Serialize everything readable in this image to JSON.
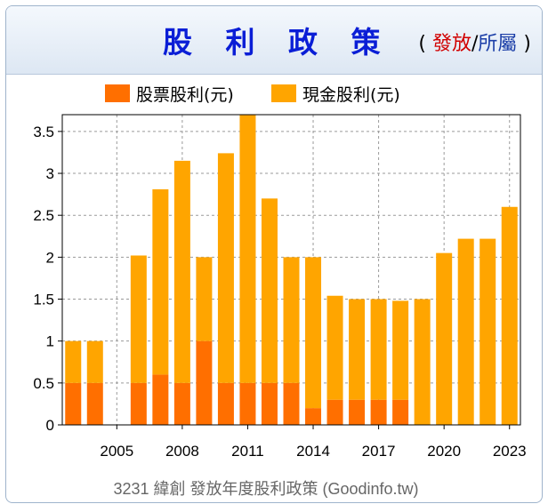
{
  "header": {
    "title": "股 利 政 策",
    "paren_open": "(",
    "option_active": "發放",
    "separator": "/",
    "option_other": "所屬",
    "paren_close": ")"
  },
  "colors": {
    "stock_dividend": "#ff6f00",
    "cash_dividend": "#ffa500",
    "header_title": "#0a1ed6",
    "active_option": "#d10000",
    "other_option": "#1c3fa8"
  },
  "chart_data": {
    "type": "bar",
    "stacked": true,
    "categories": [
      "2003",
      "2004",
      "2005",
      "2006",
      "2007",
      "2008",
      "2009",
      "2010",
      "2011",
      "2012",
      "2013",
      "2014",
      "2015",
      "2016",
      "2017",
      "2018",
      "2019",
      "2020",
      "2021",
      "2022",
      "2023"
    ],
    "series": [
      {
        "name": "股票股利(元)",
        "color": "#ff6f00",
        "values": [
          0.5,
          0.5,
          0,
          0.5,
          0.6,
          0.5,
          1.0,
          0.5,
          0.5,
          0.5,
          0.5,
          0.2,
          0.3,
          0.3,
          0.3,
          0.3,
          0,
          0,
          0,
          0,
          0
        ]
      },
      {
        "name": "現金股利(元)",
        "color": "#ffa500",
        "values": [
          0.5,
          0.5,
          0,
          1.52,
          2.21,
          2.65,
          1.0,
          2.74,
          3.2,
          2.2,
          1.5,
          1.8,
          1.24,
          1.2,
          1.2,
          1.18,
          1.5,
          2.05,
          2.22,
          2.22,
          2.6
        ]
      }
    ],
    "x_tick_labels": [
      "2005",
      "2008",
      "2011",
      "2014",
      "2017",
      "2020",
      "2023"
    ],
    "y_ticks": [
      0,
      0.5,
      1,
      1.5,
      2,
      2.5,
      3,
      3.5
    ],
    "y_tick_labels": [
      "0",
      "0.5",
      "1",
      "1.5",
      "2",
      "2.5",
      "3",
      "3.5"
    ],
    "ylim": [
      0,
      3.7
    ],
    "grid": true,
    "legend_position": "top",
    "caption": "3231 緯創 發放年度股利政策 (Goodinfo.tw)"
  }
}
